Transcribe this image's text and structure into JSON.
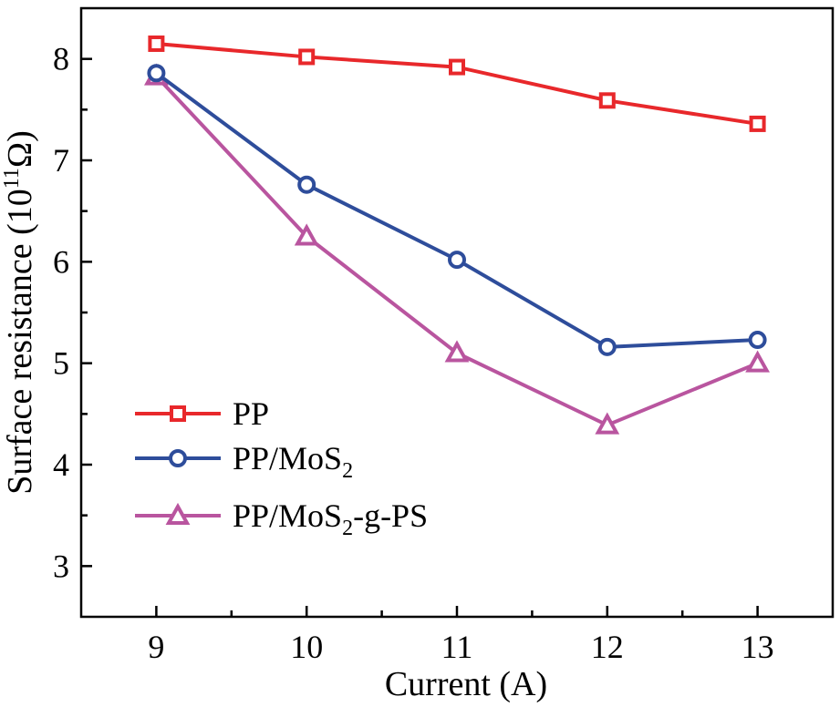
{
  "chart_data": {
    "type": "line",
    "xlabel": "Current (A)",
    "ylabel": {
      "main": "Surface resistance (10",
      "exponent": "11",
      "unit": "Ω)"
    },
    "xlim": [
      8.5,
      13.5
    ],
    "ylim": [
      2.5,
      8.5
    ],
    "xticks": [
      9,
      10,
      11,
      12,
      13
    ],
    "yticks": [
      3,
      4,
      5,
      6,
      7,
      8
    ],
    "x": [
      9,
      10,
      11,
      12,
      13
    ],
    "grid": false,
    "legend_position": "bottom-left",
    "series": [
      {
        "name": "PP",
        "legend": {
          "base": "PP",
          "sub": "",
          "suffix": ""
        },
        "marker": "square",
        "color": "#e8282b",
        "values": [
          8.15,
          8.02,
          7.92,
          7.59,
          7.36
        ]
      },
      {
        "name": "PP/MoS2",
        "legend": {
          "base": "PP/MoS",
          "sub": "2",
          "suffix": ""
        },
        "marker": "circle",
        "color": "#2e4d9b",
        "values": [
          7.86,
          6.76,
          6.02,
          5.16,
          5.23
        ]
      },
      {
        "name": "PP/MoS2-g-PS",
        "legend": {
          "base": "PP/MoS",
          "sub": "2",
          "suffix": "-g-PS"
        },
        "marker": "triangle",
        "color": "#b9559f",
        "values": [
          7.83,
          6.25,
          5.1,
          4.39,
          5.0
        ]
      }
    ]
  }
}
